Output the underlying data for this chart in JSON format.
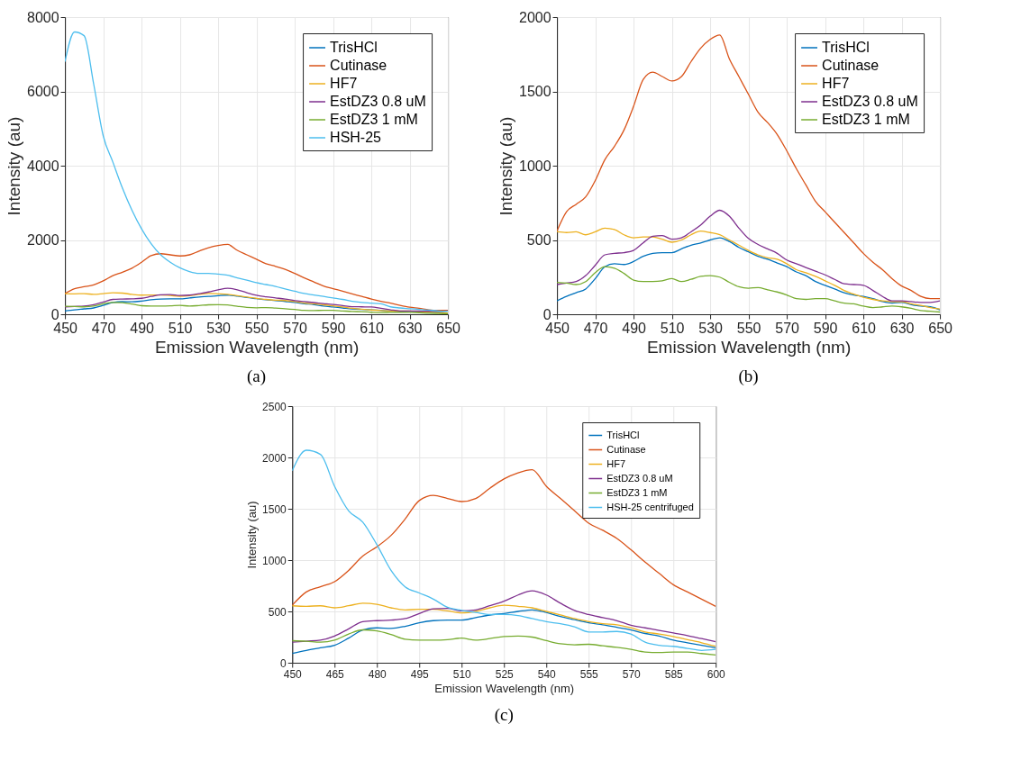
{
  "chart_data": [
    {
      "type": "line",
      "xlabel": "Emission Wavelength (nm)",
      "ylabel": "Intensity (au)",
      "annotations": [
        "(a)"
      ],
      "xlim": [
        450,
        650
      ],
      "xticks": [
        450,
        470,
        490,
        510,
        530,
        550,
        570,
        590,
        610,
        630,
        650
      ],
      "ylim": [
        0,
        8000
      ],
      "yticks": [
        0,
        2000,
        4000,
        6000,
        8000
      ],
      "grid": true,
      "legend": "top right",
      "x": [
        450,
        455,
        460,
        465,
        470,
        475,
        480,
        485,
        490,
        495,
        500,
        505,
        510,
        515,
        520,
        525,
        530,
        535,
        540,
        545,
        550,
        555,
        560,
        565,
        570,
        575,
        580,
        585,
        590,
        595,
        600,
        605,
        610,
        615,
        620,
        625,
        630,
        635,
        640,
        645,
        650
      ],
      "series": [
        {
          "name": "TrisHCl",
          "color": "#0072bd",
          "values": [
            90,
            120,
            145,
            170,
            240,
            320,
            340,
            335,
            355,
            390,
            410,
            415,
            415,
            440,
            465,
            480,
            500,
            515,
            490,
            450,
            420,
            390,
            370,
            345,
            320,
            285,
            260,
            220,
            195,
            170,
            145,
            130,
            120,
            105,
            85,
            75,
            80,
            65,
            55,
            50,
            30
          ]
        },
        {
          "name": "Cutinase",
          "color": "#d95319",
          "values": [
            560,
            690,
            740,
            790,
            900,
            1040,
            1130,
            1240,
            1400,
            1580,
            1630,
            1600,
            1570,
            1600,
            1700,
            1790,
            1850,
            1880,
            1720,
            1600,
            1480,
            1360,
            1290,
            1210,
            1100,
            980,
            870,
            760,
            690,
            620,
            550,
            480,
            410,
            350,
            300,
            240,
            190,
            160,
            120,
            105,
            105
          ]
        },
        {
          "name": "HF7",
          "color": "#edb120",
          "values": [
            555,
            550,
            555,
            535,
            555,
            580,
            570,
            535,
            515,
            520,
            520,
            505,
            485,
            500,
            535,
            560,
            550,
            535,
            500,
            465,
            430,
            400,
            380,
            370,
            340,
            300,
            280,
            255,
            225,
            195,
            160,
            135,
            115,
            100,
            90,
            85,
            85,
            70,
            60,
            45,
            35
          ]
        },
        {
          "name": "EstDZ3 0.8 uM",
          "color": "#7e2f8e",
          "values": [
            200,
            210,
            220,
            260,
            330,
            400,
            410,
            415,
            430,
            480,
            525,
            530,
            505,
            515,
            555,
            600,
            660,
            700,
            660,
            580,
            510,
            470,
            440,
            410,
            365,
            340,
            315,
            290,
            265,
            235,
            205,
            200,
            195,
            160,
            120,
            90,
            90,
            85,
            80,
            80,
            90
          ]
        },
        {
          "name": "EstDZ3 1 mM",
          "color": "#77ac30",
          "values": [
            215,
            210,
            200,
            220,
            280,
            320,
            310,
            275,
            230,
            220,
            220,
            225,
            240,
            220,
            235,
            255,
            260,
            250,
            215,
            185,
            175,
            180,
            165,
            150,
            130,
            105,
            100,
            105,
            105,
            90,
            75,
            70,
            55,
            45,
            50,
            55,
            50,
            40,
            25,
            20,
            15
          ]
        },
        {
          "name": "HSH-25",
          "color": "#4dbeee",
          "values": [
            6800,
            7600,
            7500,
            6200,
            4800,
            4100,
            3400,
            2800,
            2300,
            1900,
            1600,
            1400,
            1250,
            1150,
            1100,
            1100,
            1080,
            1050,
            980,
            920,
            850,
            800,
            750,
            680,
            620,
            560,
            520,
            480,
            440,
            400,
            350,
            320,
            300,
            280,
            200,
            170,
            150,
            130,
            110,
            90,
            80
          ]
        }
      ]
    },
    {
      "type": "line",
      "xlabel": "Emission Wavelength (nm)",
      "ylabel": "Intensity (au)",
      "annotations": [
        "(b)"
      ],
      "xlim": [
        450,
        650
      ],
      "xticks": [
        450,
        470,
        490,
        510,
        530,
        550,
        570,
        590,
        610,
        630,
        650
      ],
      "ylim": [
        0,
        2000
      ],
      "yticks": [
        0,
        500,
        1000,
        1500,
        2000
      ],
      "grid": true,
      "legend": "top right",
      "x": [
        450,
        455,
        460,
        465,
        470,
        475,
        480,
        485,
        490,
        495,
        500,
        505,
        510,
        515,
        520,
        525,
        530,
        535,
        540,
        545,
        550,
        555,
        560,
        565,
        570,
        575,
        580,
        585,
        590,
        595,
        600,
        605,
        610,
        615,
        620,
        625,
        630,
        635,
        640,
        645,
        650
      ],
      "series": [
        {
          "name": "TrisHCl",
          "color": "#0072bd",
          "values": [
            90,
            120,
            145,
            170,
            240,
            320,
            340,
            335,
            355,
            390,
            410,
            415,
            415,
            440,
            465,
            480,
            500,
            515,
            490,
            450,
            420,
            390,
            370,
            345,
            320,
            285,
            260,
            220,
            195,
            170,
            145,
            130,
            120,
            105,
            85,
            75,
            80,
            65,
            55,
            50,
            30
          ]
        },
        {
          "name": "Cutinase",
          "color": "#d95319",
          "values": [
            560,
            690,
            740,
            790,
            900,
            1040,
            1130,
            1240,
            1400,
            1580,
            1630,
            1600,
            1570,
            1600,
            1700,
            1790,
            1850,
            1880,
            1720,
            1600,
            1480,
            1360,
            1290,
            1210,
            1100,
            980,
            870,
            760,
            690,
            620,
            550,
            480,
            410,
            350,
            300,
            240,
            190,
            160,
            120,
            105,
            105
          ]
        },
        {
          "name": "HF7",
          "color": "#edb120",
          "values": [
            555,
            550,
            555,
            535,
            555,
            580,
            570,
            535,
            515,
            520,
            520,
            505,
            485,
            500,
            535,
            560,
            550,
            535,
            500,
            465,
            430,
            400,
            380,
            370,
            340,
            300,
            280,
            255,
            225,
            195,
            160,
            135,
            115,
            100,
            90,
            85,
            85,
            70,
            60,
            45,
            35
          ]
        },
        {
          "name": "EstDZ3 0.8 uM",
          "color": "#7e2f8e",
          "values": [
            200,
            210,
            220,
            260,
            330,
            400,
            410,
            415,
            430,
            480,
            525,
            530,
            505,
            515,
            555,
            600,
            660,
            700,
            660,
            580,
            510,
            470,
            440,
            410,
            365,
            340,
            315,
            290,
            265,
            235,
            205,
            200,
            195,
            160,
            120,
            90,
            90,
            85,
            80,
            80,
            90
          ]
        },
        {
          "name": "EstDZ3 1 mM",
          "color": "#77ac30",
          "values": [
            215,
            210,
            200,
            220,
            280,
            320,
            310,
            275,
            230,
            220,
            220,
            225,
            240,
            220,
            235,
            255,
            260,
            250,
            215,
            185,
            175,
            180,
            165,
            150,
            130,
            105,
            100,
            105,
            105,
            90,
            75,
            70,
            55,
            45,
            50,
            55,
            50,
            40,
            25,
            20,
            15
          ]
        }
      ]
    },
    {
      "type": "line",
      "xlabel": "Emission Wavelength (nm)",
      "ylabel": "Intensity (au)",
      "annotations": [
        "(c)"
      ],
      "xlim": [
        450,
        600
      ],
      "xticks": [
        450,
        465,
        480,
        495,
        510,
        525,
        540,
        555,
        570,
        585,
        600
      ],
      "ylim": [
        0,
        2500
      ],
      "yticks": [
        0,
        500,
        1000,
        1500,
        2000,
        2500
      ],
      "grid": true,
      "legend": "top right",
      "x": [
        450,
        455,
        460,
        465,
        470,
        475,
        480,
        485,
        490,
        495,
        500,
        505,
        510,
        515,
        520,
        525,
        530,
        535,
        540,
        545,
        550,
        555,
        560,
        565,
        570,
        575,
        580,
        585,
        590,
        595,
        600
      ],
      "series": [
        {
          "name": "TrisHCl",
          "color": "#0072bd",
          "values": [
            90,
            120,
            145,
            170,
            240,
            320,
            340,
            335,
            355,
            390,
            410,
            415,
            415,
            440,
            465,
            480,
            500,
            515,
            490,
            450,
            420,
            390,
            370,
            345,
            320,
            285,
            260,
            220,
            195,
            170,
            145
          ]
        },
        {
          "name": "Cutinase",
          "color": "#d95319",
          "values": [
            560,
            690,
            740,
            790,
            900,
            1040,
            1130,
            1240,
            1400,
            1580,
            1630,
            1600,
            1570,
            1600,
            1700,
            1790,
            1850,
            1880,
            1720,
            1600,
            1480,
            1360,
            1290,
            1210,
            1100,
            980,
            870,
            760,
            690,
            620,
            550
          ]
        },
        {
          "name": "HF7",
          "color": "#edb120",
          "values": [
            555,
            550,
            555,
            535,
            555,
            580,
            570,
            535,
            515,
            520,
            520,
            505,
            485,
            500,
            535,
            560,
            550,
            535,
            500,
            465,
            430,
            400,
            380,
            370,
            340,
            300,
            280,
            255,
            225,
            195,
            160
          ]
        },
        {
          "name": "EstDZ3 0.8 uM",
          "color": "#7e2f8e",
          "values": [
            200,
            210,
            220,
            260,
            330,
            400,
            410,
            415,
            430,
            480,
            525,
            530,
            505,
            515,
            555,
            600,
            660,
            700,
            660,
            580,
            510,
            470,
            440,
            410,
            365,
            340,
            315,
            290,
            265,
            235,
            205
          ]
        },
        {
          "name": "EstDZ3 1 mM",
          "color": "#77ac30",
          "values": [
            215,
            210,
            200,
            220,
            280,
            320,
            310,
            275,
            230,
            220,
            220,
            225,
            240,
            220,
            235,
            255,
            260,
            250,
            215,
            185,
            175,
            180,
            165,
            150,
            130,
            105,
            100,
            105,
            105,
            90,
            75
          ]
        },
        {
          "name": "HSH-25 centrifuged",
          "color": "#4dbeee",
          "values": [
            1870,
            2070,
            2030,
            1720,
            1480,
            1370,
            1150,
            900,
            740,
            680,
            620,
            540,
            510,
            490,
            470,
            470,
            460,
            430,
            400,
            380,
            350,
            300,
            300,
            305,
            280,
            200,
            170,
            160,
            140,
            120,
            130
          ]
        }
      ]
    }
  ]
}
